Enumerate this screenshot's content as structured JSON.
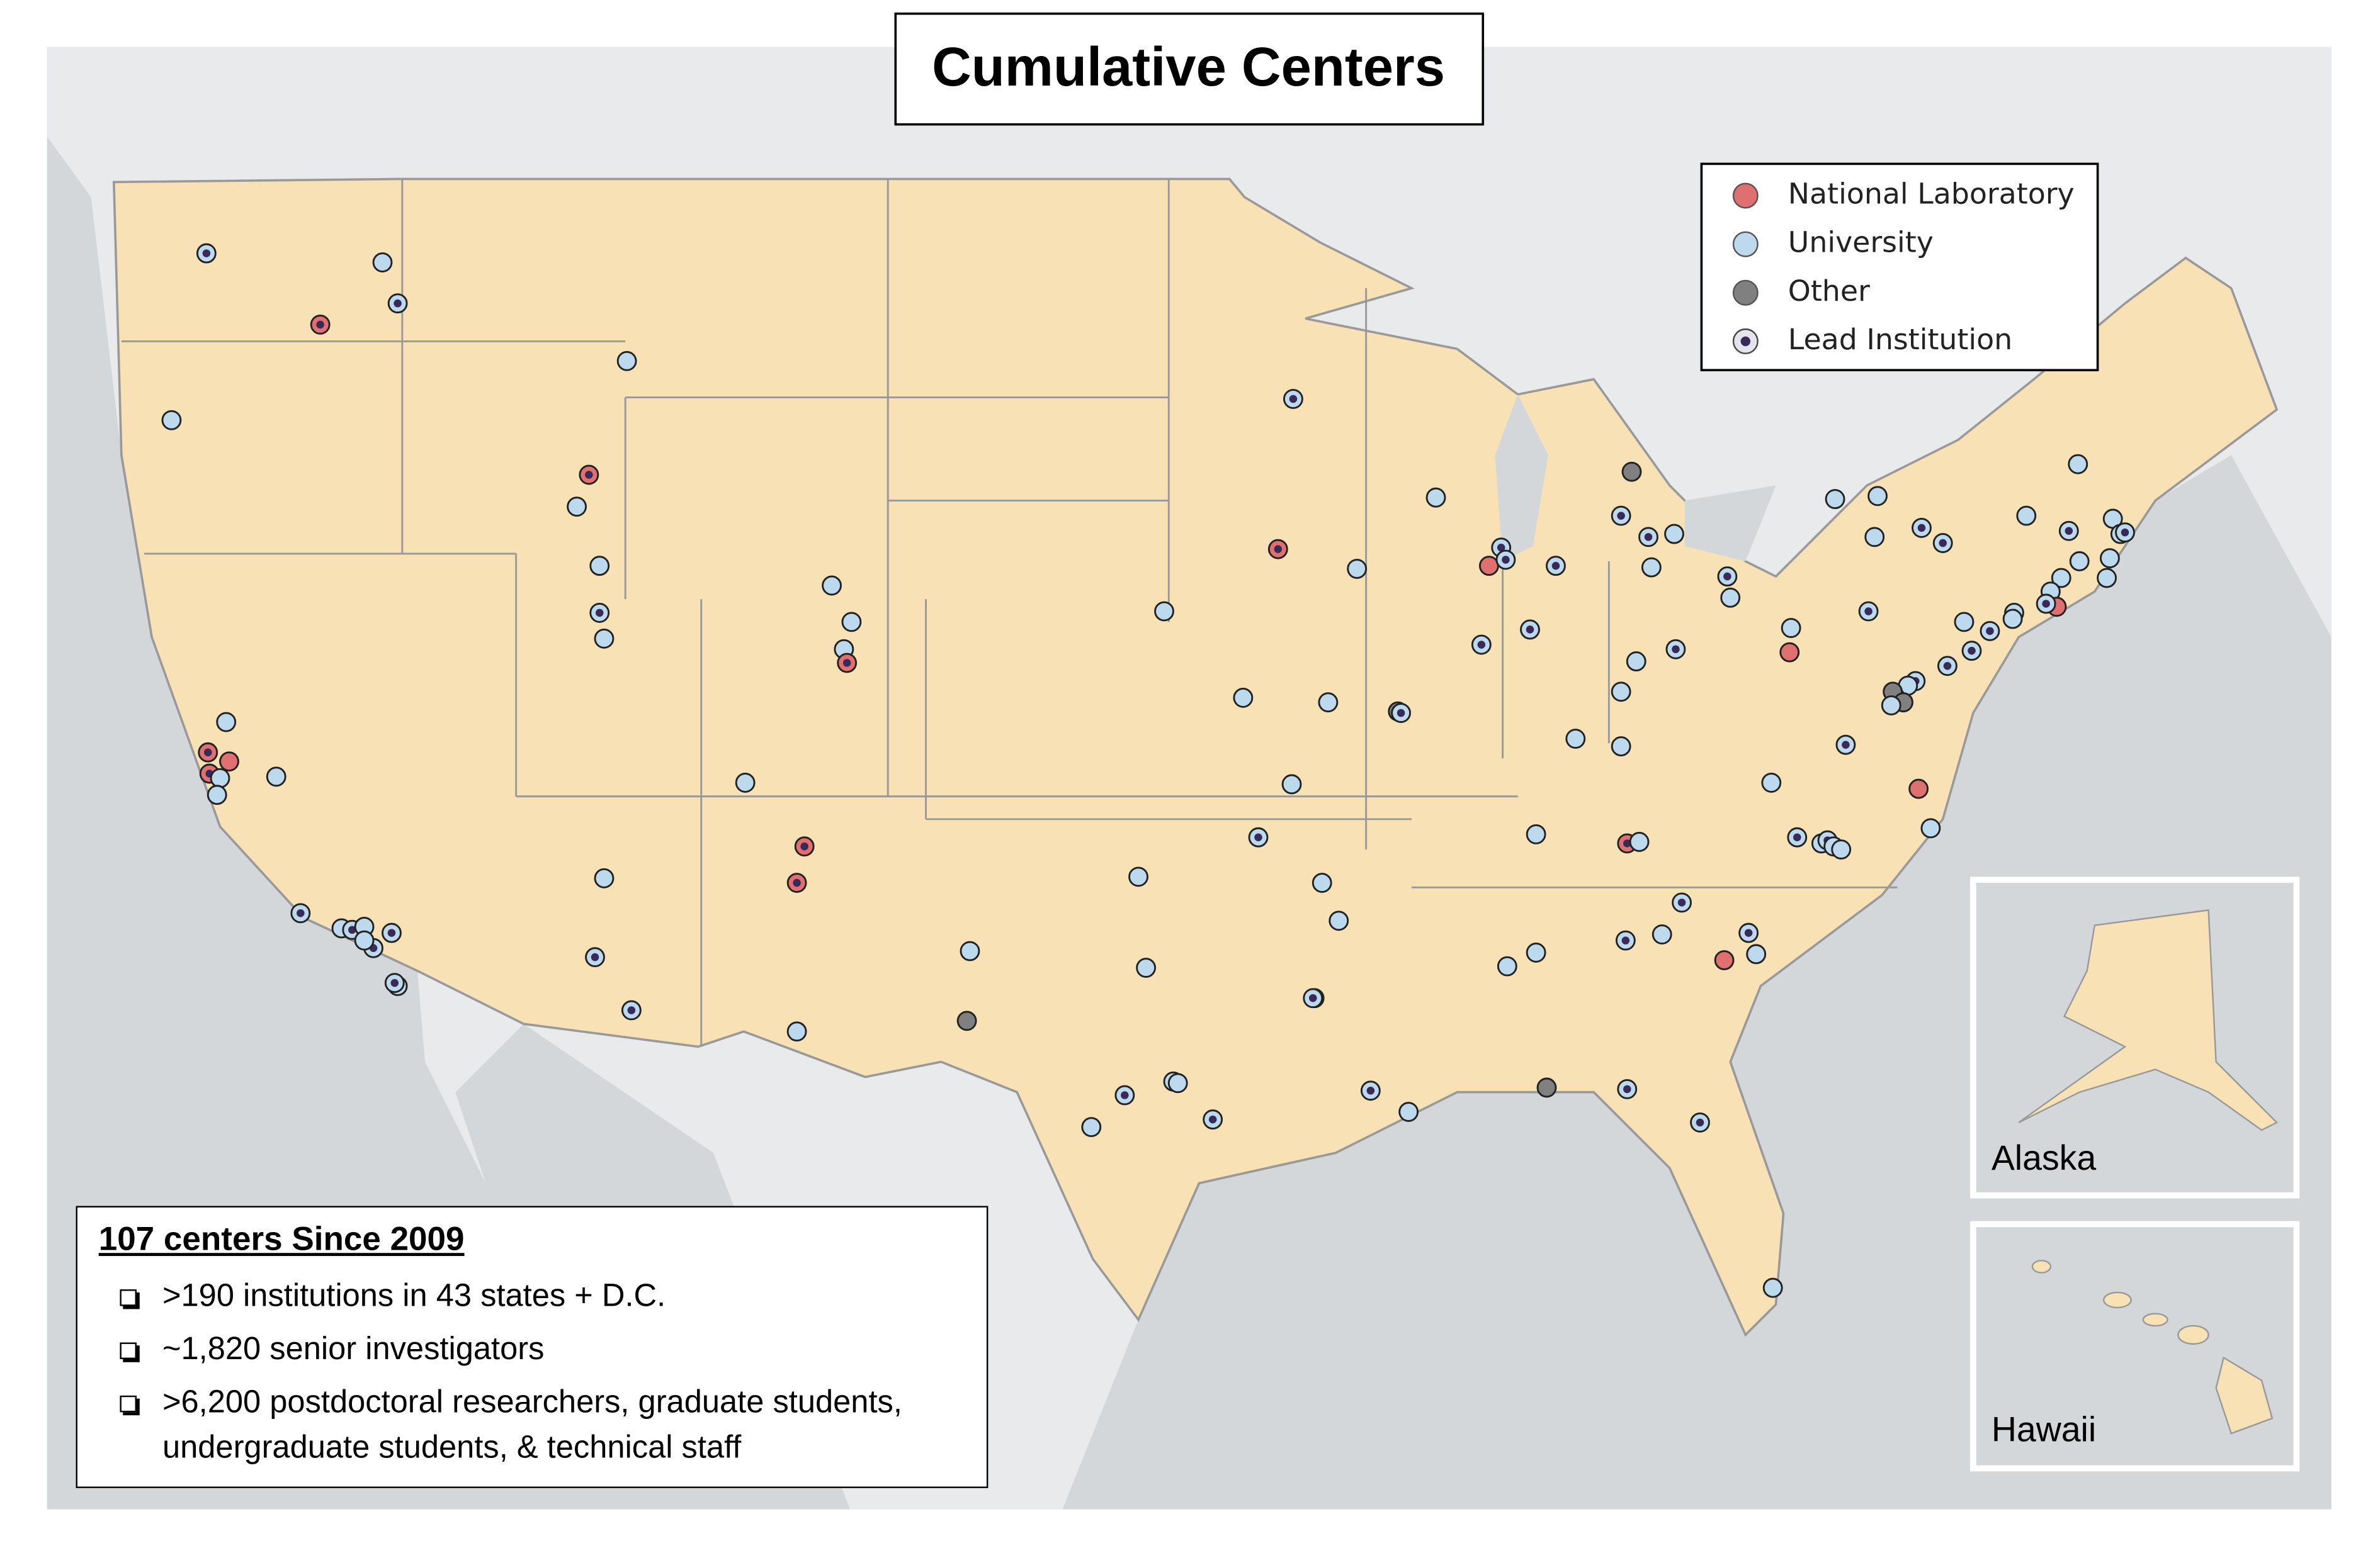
{
  "title": "Cumulative Centers",
  "legend": [
    {
      "label": "National Laboratory",
      "color": "#e07070"
    },
    {
      "label": "University",
      "color": "#bcd9ee"
    },
    {
      "label": "Other",
      "color": "#808080"
    },
    {
      "label": "Lead Institution",
      "color": "#3a2a5a"
    }
  ],
  "insets": [
    "Alaska",
    "Hawaii"
  ],
  "summary": {
    "heading": "107 centers Since 2009",
    "items": [
      ">190 institutions in 43 states + D.C.",
      "~1,820 senior investigators",
      ">6,200 postdoctoral researchers, graduate students, undergraduate students, & technical staff"
    ]
  }
}
